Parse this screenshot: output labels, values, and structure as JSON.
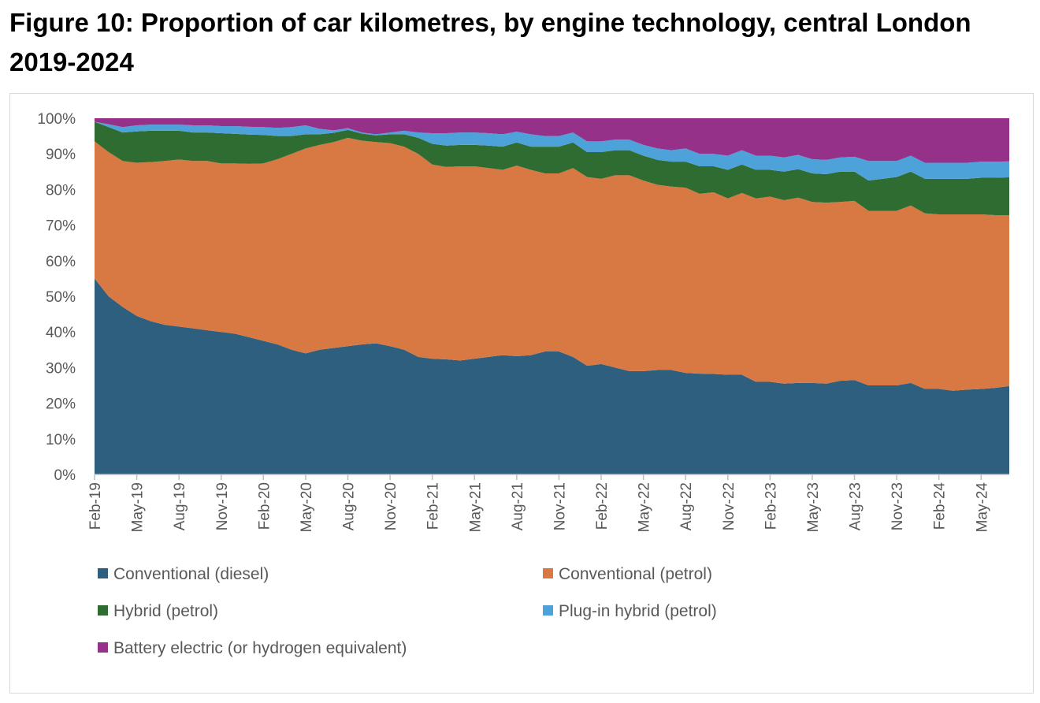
{
  "figure": {
    "title": "Figure 10: Proportion of car kilometres, by engine technology, central London 2019-2024"
  },
  "chart_data": {
    "type": "area",
    "stacked": true,
    "normalized": true,
    "title": "Figure 10: Proportion of car kilometres, by engine technology, central London 2019-2024",
    "xlabel": "",
    "ylabel": "",
    "ylim": [
      0,
      100
    ],
    "yticks": [
      "0%",
      "10%",
      "20%",
      "30%",
      "40%",
      "50%",
      "60%",
      "70%",
      "80%",
      "90%",
      "100%"
    ],
    "x": [
      "Feb-19",
      "Mar-19",
      "Apr-19",
      "May-19",
      "Jun-19",
      "Jul-19",
      "Aug-19",
      "Sep-19",
      "Oct-19",
      "Nov-19",
      "Dec-19",
      "Jan-20",
      "Feb-20",
      "Mar-20",
      "Apr-20",
      "May-20",
      "Jun-20",
      "Jul-20",
      "Aug-20",
      "Sep-20",
      "Oct-20",
      "Nov-20",
      "Dec-20",
      "Jan-21",
      "Feb-21",
      "Mar-21",
      "Apr-21",
      "May-21",
      "Jun-21",
      "Jul-21",
      "Aug-21",
      "Sep-21",
      "Oct-21",
      "Nov-21",
      "Dec-21",
      "Jan-22",
      "Feb-22",
      "Mar-22",
      "Apr-22",
      "May-22",
      "Jun-22",
      "Jul-22",
      "Aug-22",
      "Sep-22",
      "Oct-22",
      "Nov-22",
      "Dec-22",
      "Jan-23",
      "Feb-23",
      "Mar-23",
      "Apr-23",
      "May-23",
      "Jun-23",
      "Jul-23",
      "Aug-23",
      "Sep-23",
      "Oct-23",
      "Nov-23",
      "Dec-23",
      "Jan-24",
      "Feb-24",
      "Mar-24",
      "Apr-24",
      "May-24",
      "Jun-24",
      "Jul-24"
    ],
    "xtick_labels": [
      "Feb-19",
      "May-19",
      "Aug-19",
      "Nov-19",
      "Feb-20",
      "May-20",
      "Aug-20",
      "Nov-20",
      "Feb-21",
      "May-21",
      "Aug-21",
      "Nov-21",
      "Feb-22",
      "May-22",
      "Aug-22",
      "Nov-22",
      "Feb-23",
      "May-23",
      "Aug-23",
      "Nov-23",
      "Feb-24",
      "May-24"
    ],
    "grid": false,
    "legend_position": "bottom",
    "series": [
      {
        "name": "Conventional (diesel)",
        "color": "#2e5f7f",
        "values": [
          55.0,
          50.0,
          47.0,
          44.5,
          43.0,
          42.0,
          41.5,
          41.0,
          40.5,
          40.0,
          39.5,
          38.5,
          37.5,
          36.5,
          35.0,
          34.0,
          35.0,
          35.5,
          36.0,
          36.5,
          36.8,
          36.0,
          35.0,
          33.0,
          32.5,
          32.3,
          32.0,
          32.5,
          33.0,
          33.5,
          33.2,
          33.5,
          34.5,
          34.5,
          33.0,
          30.5,
          31.0,
          30.0,
          29.0,
          29.0,
          29.3,
          29.3,
          28.5,
          28.3,
          28.2,
          28.0,
          28.0,
          26.0,
          26.0,
          25.5,
          25.7,
          25.7,
          25.5,
          26.3,
          26.5,
          25.0,
          25.0,
          25.0,
          25.7,
          24.0,
          24.0,
          23.5,
          23.8,
          24.0,
          24.3,
          24.8
        ]
      },
      {
        "name": "Conventional (petrol)",
        "color": "#d87944",
        "values": [
          38.5,
          40.5,
          41.0,
          43.0,
          44.7,
          46.0,
          46.9,
          47.0,
          47.5,
          47.3,
          47.8,
          48.7,
          49.8,
          52.0,
          55.0,
          57.5,
          57.5,
          57.8,
          58.5,
          57.2,
          56.5,
          57.0,
          57.0,
          57.0,
          54.5,
          54.0,
          54.5,
          54.0,
          53.0,
          52.0,
          53.5,
          52.0,
          50.0,
          50.0,
          53.0,
          53.0,
          52.0,
          54.0,
          55.0,
          53.5,
          52.0,
          51.5,
          52.0,
          50.5,
          51.0,
          49.5,
          51.0,
          51.5,
          52.0,
          51.5,
          52.0,
          50.8,
          50.8,
          50.2,
          50.3,
          49.0,
          49.0,
          49.0,
          49.8,
          49.3,
          49.0,
          49.5,
          49.2,
          49.0,
          48.5,
          48.0
        ]
      },
      {
        "name": "Hybrid (petrol)",
        "color": "#2f6c31",
        "values": [
          5.5,
          7.0,
          8.0,
          8.8,
          8.8,
          8.5,
          8.1,
          8.0,
          8.0,
          8.5,
          8.3,
          8.2,
          8.0,
          6.5,
          5.0,
          4.0,
          3.0,
          2.6,
          2.2,
          2.0,
          1.9,
          2.5,
          3.5,
          4.5,
          5.8,
          6.0,
          6.0,
          6.0,
          6.3,
          6.5,
          6.5,
          6.5,
          7.5,
          7.5,
          7.2,
          7.0,
          7.5,
          7.0,
          7.0,
          7.0,
          7.0,
          7.0,
          7.3,
          7.7,
          7.3,
          8.0,
          8.0,
          8.0,
          7.5,
          8.0,
          8.0,
          8.0,
          8.0,
          8.5,
          8.2,
          8.5,
          9.0,
          9.5,
          9.5,
          9.7,
          10.0,
          10.0,
          10.0,
          10.3,
          10.5,
          10.6
        ]
      },
      {
        "name": "Plug-in hybrid (petrol)",
        "color": "#4ea2da",
        "values": [
          0.0,
          0.8,
          1.5,
          1.7,
          1.7,
          1.7,
          1.7,
          2.0,
          2.0,
          2.0,
          2.2,
          2.2,
          2.2,
          2.3,
          2.5,
          2.5,
          1.5,
          0.7,
          0.5,
          0.3,
          0.3,
          0.5,
          1.0,
          1.5,
          3.0,
          3.5,
          3.5,
          3.5,
          3.5,
          3.5,
          3.0,
          3.5,
          3.0,
          3.0,
          2.8,
          3.0,
          3.0,
          3.0,
          3.0,
          3.0,
          3.2,
          3.2,
          3.7,
          3.5,
          3.5,
          4.0,
          4.0,
          4.0,
          4.0,
          4.0,
          4.0,
          4.0,
          4.0,
          4.0,
          4.2,
          5.5,
          5.0,
          4.5,
          4.5,
          4.5,
          4.5,
          4.5,
          4.5,
          4.5,
          4.5,
          4.5
        ]
      },
      {
        "name": "Battery electric (or hydrogen equivalent)",
        "color": "#953188",
        "values": [
          1.0,
          1.7,
          2.5,
          2.0,
          1.8,
          1.8,
          1.8,
          2.0,
          2.0,
          2.2,
          2.2,
          2.4,
          2.5,
          2.7,
          2.5,
          2.0,
          3.0,
          3.4,
          2.8,
          4.0,
          4.5,
          4.0,
          3.5,
          4.0,
          4.2,
          4.2,
          4.0,
          4.0,
          4.2,
          4.5,
          3.8,
          4.5,
          5.0,
          5.0,
          4.0,
          6.5,
          6.5,
          6.0,
          6.0,
          7.5,
          8.5,
          9.0,
          8.5,
          10.0,
          10.0,
          10.5,
          9.0,
          10.5,
          10.5,
          11.0,
          10.3,
          11.5,
          11.7,
          11.0,
          10.8,
          12.0,
          12.0,
          12.0,
          10.5,
          12.5,
          12.5,
          12.5,
          12.5,
          12.2,
          12.2,
          12.1
        ]
      }
    ]
  }
}
